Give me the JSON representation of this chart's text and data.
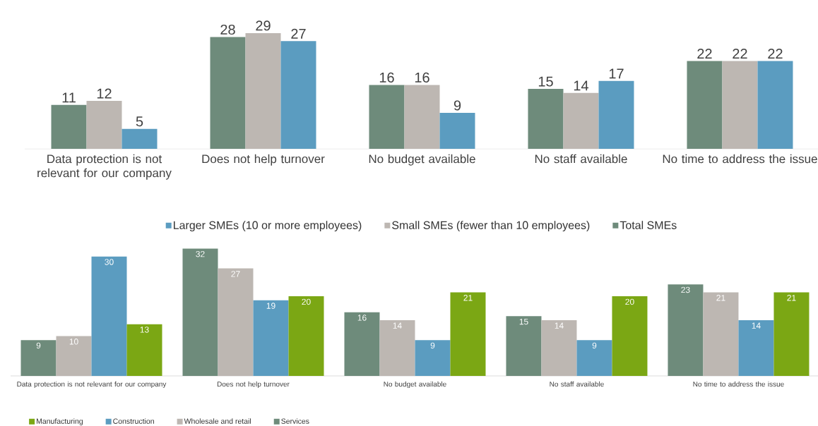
{
  "chart_data": [
    {
      "type": "bar",
      "categories": [
        "Data protection is not relevant for our company",
        "Does not help turnover",
        "No budget available",
        "No staff available",
        "No time to address the issue"
      ],
      "series": [
        {
          "name": "Total SMEs",
          "color": "#6e8b7b",
          "values": [
            11,
            28,
            16,
            15,
            22
          ]
        },
        {
          "name": "Small SMEs (fewer than 10 employees)",
          "color": "#bdb7b2",
          "values": [
            12,
            29,
            16,
            14,
            22
          ]
        },
        {
          "name": "Larger SMEs (10 or more employees)",
          "color": "#5b9cc0",
          "values": [
            5,
            27,
            9,
            17,
            22
          ]
        }
      ],
      "data_labels": true,
      "legend": "bottom"
    },
    {
      "type": "bar",
      "categories": [
        "Data protection is not relevant for our company",
        "Does not help turnover",
        "No budget available",
        "No staff available",
        "No time to address the issue"
      ],
      "series": [
        {
          "name": "Services",
          "color": "#6e8b7b",
          "values": [
            9,
            32,
            16,
            15,
            23
          ]
        },
        {
          "name": "Wholesale and retail",
          "color": "#bdb7b2",
          "values": [
            10,
            27,
            14,
            14,
            21
          ]
        },
        {
          "name": "Construction",
          "color": "#5b9cc0",
          "values": [
            30,
            19,
            9,
            9,
            14
          ]
        },
        {
          "name": "Manufacturing",
          "color": "#7ba714",
          "values": [
            13,
            20,
            21,
            20,
            21
          ]
        }
      ],
      "data_labels": true,
      "legend": "bottom left"
    }
  ]
}
